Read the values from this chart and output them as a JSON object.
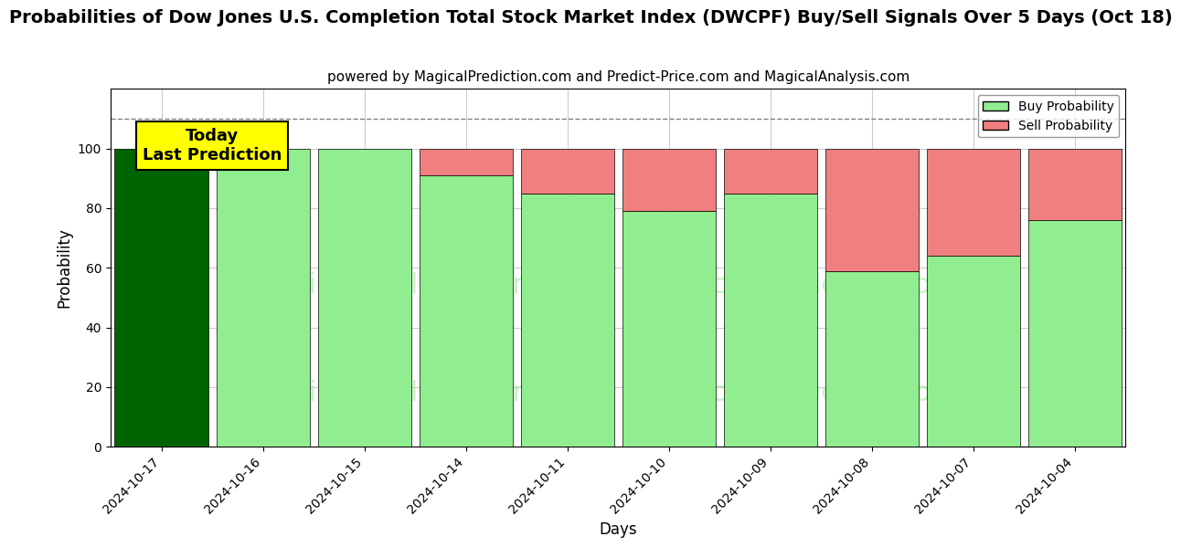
{
  "title": "Probabilities of Dow Jones U.S. Completion Total Stock Market Index (DWCPF) Buy/Sell Signals Over 5 Days (Oct 18)",
  "subtitle": "powered by MagicalPrediction.com and Predict-Price.com and MagicalAnalysis.com",
  "xlabel": "Days",
  "ylabel": "Probability",
  "categories": [
    "2024-10-17",
    "2024-10-16",
    "2024-10-15",
    "2024-10-14",
    "2024-10-11",
    "2024-10-10",
    "2024-10-09",
    "2024-10-08",
    "2024-10-07",
    "2024-10-04"
  ],
  "buy_values": [
    100,
    100,
    100,
    91,
    85,
    79,
    85,
    59,
    64,
    76
  ],
  "sell_values": [
    0,
    0,
    0,
    9,
    15,
    21,
    15,
    41,
    36,
    24
  ],
  "today_bar_color": "#006400",
  "buy_color": "#90EE90",
  "sell_color": "#F08080",
  "today_annotation_bg": "#FFFF00",
  "today_annotation_text": "Today\nLast Prediction",
  "ylim": [
    0,
    120
  ],
  "dashed_line_y": 110,
  "watermark1": "MagicalAnalysis.com",
  "watermark2": "MagicalPrediction.com",
  "background_color": "#ffffff",
  "grid_color": "#cccccc",
  "title_fontsize": 14,
  "subtitle_fontsize": 11,
  "axis_label_fontsize": 12,
  "tick_fontsize": 10
}
